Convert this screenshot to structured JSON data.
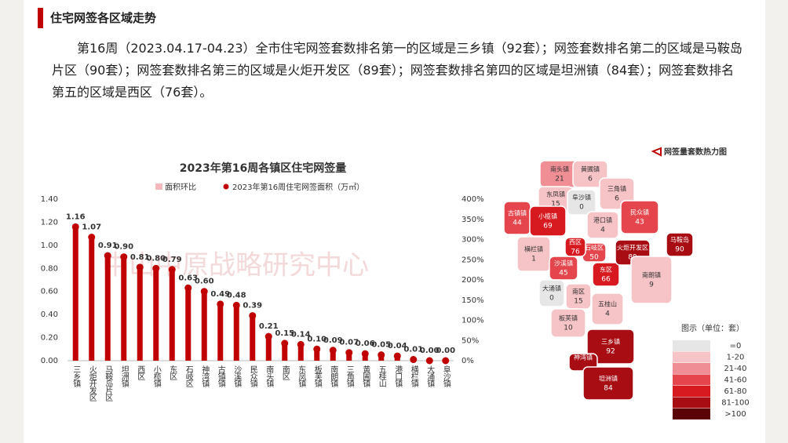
{
  "header": {
    "title": "住宅网签各区域走势"
  },
  "paragraph": "第16周（2023.04.17-04.23）全市住宅网签套数排名第一的区域是三乡镇（92套）；网签套数排名第二的区域是马鞍岛片区（90套）；网签套数排名第三的区域是火炬开发区（89套）；网签套数排名第四的区域是坦洲镇（84套）；网签套数排名第五的区域是西区（76套）。",
  "watermark": "中山中原战略研究中心",
  "chart_data": {
    "type": "bar",
    "title": "2023年第16周各镇区住宅网签量",
    "categories": [
      "三乡镇",
      "火炬开发区",
      "马鞍岛片区",
      "坦洲镇",
      "西区",
      "小榄镇",
      "东区",
      "石岐区",
      "神湾镇",
      "古镇镇",
      "沙溪镇",
      "民众镇",
      "南头镇",
      "南区",
      "东凤镇",
      "板芙镇",
      "南朗镇",
      "三角镇",
      "黄圃镇",
      "五桂山",
      "港口镇",
      "横栏镇",
      "大涌镇",
      "阜沙镇"
    ],
    "series": [
      {
        "name": "面积环比",
        "color": "#f4b8bd",
        "axis": "y2",
        "values": [
          null,
          null,
          null,
          null,
          null,
          null,
          null,
          null,
          null,
          null,
          null,
          null,
          null,
          null,
          null,
          null,
          null,
          null,
          null,
          null,
          null,
          null,
          null,
          null
        ]
      },
      {
        "name": "2023年第16周住宅网签面积（万㎡）",
        "color": "#c00000",
        "values": [
          1.16,
          1.07,
          0.91,
          0.9,
          0.81,
          0.8,
          0.79,
          0.63,
          0.6,
          0.49,
          0.48,
          0.39,
          0.21,
          0.15,
          0.14,
          0.1,
          0.09,
          0.07,
          0.06,
          0.05,
          0.04,
          0.01,
          0.0,
          0.0
        ],
        "value_labels": [
          "1.16",
          "1.07",
          "0.91",
          "0.90",
          "0.81",
          "0.80",
          "0.79",
          "0.63",
          "0.60",
          "0.49",
          "0.48",
          "0.39",
          "0.21",
          "0.15",
          "0.14",
          "0.10",
          "0.09",
          "0.07",
          "0.06",
          "0.05",
          "0.04",
          "0.01",
          "0.00",
          "0.00"
        ]
      }
    ],
    "ylim": [
      0,
      1.4
    ],
    "yticks": [
      {
        "value": 0,
        "label": "0.00"
      },
      {
        "value": 0.2,
        "label": "0.20"
      },
      {
        "value": 0.4,
        "label": "0.40"
      },
      {
        "value": 0.6,
        "label": "0.60"
      },
      {
        "value": 0.8,
        "label": "0.80"
      },
      {
        "value": 1,
        "label": "1.00"
      },
      {
        "value": 1.2,
        "label": "1.20"
      },
      {
        "value": 1.4,
        "label": "1.40"
      }
    ],
    "y2lim": [
      0,
      400
    ],
    "y2ticks": [
      {
        "value": 0,
        "label": "0%"
      },
      {
        "value": 50,
        "label": "50%"
      },
      {
        "value": 100,
        "label": "100%"
      },
      {
        "value": 150,
        "label": "150%"
      },
      {
        "value": 200,
        "label": "200%"
      },
      {
        "value": 250,
        "label": "250%"
      },
      {
        "value": 300,
        "label": "300%"
      },
      {
        "value": 350,
        "label": "350%"
      },
      {
        "value": 400,
        "label": "400%"
      }
    ]
  },
  "map": {
    "title": "网签量套数热力图",
    "legend_title": "图示（单位：套）",
    "legend": [
      {
        "label": "=0",
        "color": "#e6e6e6"
      },
      {
        "label": "1-20",
        "color": "#f6c3c6"
      },
      {
        "label": "21-40",
        "color": "#ef8f95"
      },
      {
        "label": "41-60",
        "color": "#e5464d"
      },
      {
        "label": "61-80",
        "color": "#d71920"
      },
      {
        "label": "81-100",
        "color": "#a80d14"
      },
      {
        "label": ">100",
        "color": "#5a0408"
      }
    ],
    "regions": [
      {
        "name": "南头镇",
        "count": 21,
        "color": "#ef8f95"
      },
      {
        "name": "黄圃镇",
        "count": 6,
        "color": "#f6c3c6"
      },
      {
        "name": "东凤镇",
        "count": 15,
        "color": "#f6c3c6"
      },
      {
        "name": "阜沙镇",
        "count": 0,
        "color": "#e6e6e6"
      },
      {
        "name": "三角镇",
        "count": 6,
        "color": "#f6c3c6"
      },
      {
        "name": "古镇镇",
        "count": 44,
        "color": "#e5464d"
      },
      {
        "name": "小榄镇",
        "count": 69,
        "color": "#d71920"
      },
      {
        "name": "港口镇",
        "count": 4,
        "color": "#f6c3c6"
      },
      {
        "name": "民众镇",
        "count": 43,
        "color": "#e5464d"
      },
      {
        "name": "横栏镇",
        "count": 1,
        "color": "#f6c3c6"
      },
      {
        "name": "石岐区",
        "count": 50,
        "color": "#e5464d"
      },
      {
        "name": "东区",
        "count": 66,
        "color": "#d71920"
      },
      {
        "name": "火炬开发区",
        "count": 89,
        "color": "#a80d14"
      },
      {
        "name": "沙溪镇",
        "count": 45,
        "color": "#e5464d"
      },
      {
        "name": "西区",
        "count": 76,
        "color": "#d71920"
      },
      {
        "name": "马鞍岛",
        "count": 90,
        "color": "#a80d14"
      },
      {
        "name": "大涌镇",
        "count": 0,
        "color": "#e6e6e6"
      },
      {
        "name": "南区",
        "count": 15,
        "color": "#f6c3c6"
      },
      {
        "name": "南朗镇",
        "count": 9,
        "color": "#f6c3c6"
      },
      {
        "name": "板芙镇",
        "count": 10,
        "color": "#f6c3c6"
      },
      {
        "name": "五桂山",
        "count": 4,
        "color": "#f6c3c6"
      },
      {
        "name": "三乡镇",
        "count": 92,
        "color": "#a80d14"
      },
      {
        "name": "神湾镇",
        "color": "#a80d14"
      },
      {
        "name": "坦洲镇",
        "count": 84,
        "color": "#a80d14"
      }
    ]
  }
}
